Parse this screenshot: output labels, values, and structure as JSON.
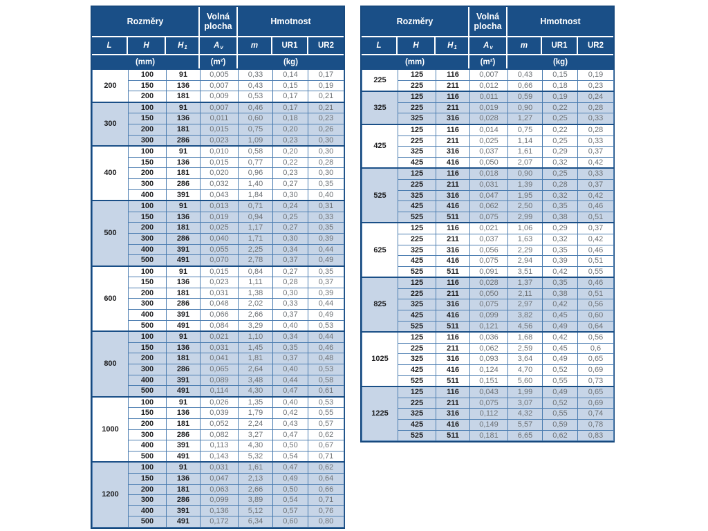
{
  "header": {
    "group_dimensions": "Rozměry",
    "group_free_area": "Volná\nplocha",
    "group_weight": "Hmotnost",
    "columns": {
      "L": "L",
      "H": "H",
      "H1_base": "H",
      "H1_sub": "1",
      "Av_base": "A",
      "Av_sub": "v",
      "m": "m",
      "UR1": "UR1",
      "UR2": "UR2"
    },
    "units": {
      "mm": "(mm)",
      "m2": "(m²)",
      "kg": "(kg)"
    }
  },
  "colors": {
    "header_navy": "#1a4f87",
    "frame_navy": "#17497e",
    "row_alt_blue": "#c7d5e7",
    "grid_blue": "#4a7cb0",
    "value_gray": "#6c7074",
    "dim_dark": "#1d1d1f"
  },
  "tables": [
    {
      "groups": [
        {
          "L": "200",
          "rows": [
            [
              "100",
              "91",
              "0,005",
              "0,33",
              "0,14",
              "0,17"
            ],
            [
              "150",
              "136",
              "0,007",
              "0,43",
              "0,15",
              "0,19"
            ],
            [
              "200",
              "181",
              "0,009",
              "0,53",
              "0,17",
              "0,21"
            ]
          ]
        },
        {
          "L": "300",
          "rows": [
            [
              "100",
              "91",
              "0,007",
              "0,46",
              "0,17",
              "0,21"
            ],
            [
              "150",
              "136",
              "0,011",
              "0,60",
              "0,18",
              "0,23"
            ],
            [
              "200",
              "181",
              "0,015",
              "0,75",
              "0,20",
              "0,26"
            ],
            [
              "300",
              "286",
              "0,023",
              "1,09",
              "0,23",
              "0,30"
            ]
          ]
        },
        {
          "L": "400",
          "rows": [
            [
              "100",
              "91",
              "0,010",
              "0,58",
              "0,20",
              "0,30"
            ],
            [
              "150",
              "136",
              "0,015",
              "0,77",
              "0,22",
              "0,28"
            ],
            [
              "200",
              "181",
              "0,020",
              "0,96",
              "0,23",
              "0,30"
            ],
            [
              "300",
              "286",
              "0,032",
              "1,40",
              "0,27",
              "0,35"
            ],
            [
              "400",
              "391",
              "0,043",
              "1,84",
              "0,30",
              "0,40"
            ]
          ]
        },
        {
          "L": "500",
          "rows": [
            [
              "100",
              "91",
              "0,013",
              "0,71",
              "0,24",
              "0,31"
            ],
            [
              "150",
              "136",
              "0,019",
              "0,94",
              "0,25",
              "0,33"
            ],
            [
              "200",
              "181",
              "0,025",
              "1,17",
              "0,27",
              "0,35"
            ],
            [
              "300",
              "286",
              "0,040",
              "1,71",
              "0,30",
              "0,39"
            ],
            [
              "400",
              "391",
              "0,055",
              "2,25",
              "0,34",
              "0,44"
            ],
            [
              "500",
              "491",
              "0,070",
              "2,78",
              "0,37",
              "0,49"
            ]
          ]
        },
        {
          "L": "600",
          "rows": [
            [
              "100",
              "91",
              "0,015",
              "0,84",
              "0,27",
              "0,35"
            ],
            [
              "150",
              "136",
              "0,023",
              "1,11",
              "0,28",
              "0,37"
            ],
            [
              "200",
              "181",
              "0,031",
              "1,38",
              "0,30",
              "0,39"
            ],
            [
              "300",
              "286",
              "0,048",
              "2,02",
              "0,33",
              "0,44"
            ],
            [
              "400",
              "391",
              "0,066",
              "2,66",
              "0,37",
              "0,49"
            ],
            [
              "500",
              "491",
              "0,084",
              "3,29",
              "0,40",
              "0,53"
            ]
          ]
        },
        {
          "L": "800",
          "rows": [
            [
              "100",
              "91",
              "0,021",
              "1,10",
              "0,34",
              "0,44"
            ],
            [
              "150",
              "136",
              "0,031",
              "1,45",
              "0,35",
              "0,46"
            ],
            [
              "200",
              "181",
              "0,041",
              "1,81",
              "0,37",
              "0,48"
            ],
            [
              "300",
              "286",
              "0,065",
              "2,64",
              "0,40",
              "0,53"
            ],
            [
              "400",
              "391",
              "0,089",
              "3,48",
              "0,44",
              "0,58"
            ],
            [
              "500",
              "491",
              "0,114",
              "4,30",
              "0,47",
              "0,61"
            ]
          ]
        },
        {
          "L": "1000",
          "rows": [
            [
              "100",
              "91",
              "0,026",
              "1,35",
              "0,40",
              "0,53"
            ],
            [
              "150",
              "136",
              "0,039",
              "1,79",
              "0,42",
              "0,55"
            ],
            [
              "200",
              "181",
              "0,052",
              "2,24",
              "0,43",
              "0,57"
            ],
            [
              "300",
              "286",
              "0,082",
              "3,27",
              "0,47",
              "0,62"
            ],
            [
              "400",
              "391",
              "0,113",
              "4,30",
              "0,50",
              "0,67"
            ],
            [
              "500",
              "491",
              "0,143",
              "5,32",
              "0,54",
              "0,71"
            ]
          ]
        },
        {
          "L": "1200",
          "rows": [
            [
              "100",
              "91",
              "0,031",
              "1,61",
              "0,47",
              "0,62"
            ],
            [
              "150",
              "136",
              "0,047",
              "2,13",
              "0,49",
              "0,64"
            ],
            [
              "200",
              "181",
              "0,063",
              "2,66",
              "0,50",
              "0,66"
            ],
            [
              "300",
              "286",
              "0,099",
              "3,89",
              "0,54",
              "0,71"
            ],
            [
              "400",
              "391",
              "0,136",
              "5,12",
              "0,57",
              "0,76"
            ],
            [
              "500",
              "491",
              "0,172",
              "6,34",
              "0,60",
              "0,80"
            ]
          ]
        }
      ]
    },
    {
      "groups": [
        {
          "L": "225",
          "rows": [
            [
              "125",
              "116",
              "0,007",
              "0,43",
              "0,15",
              "0,19"
            ],
            [
              "225",
              "211",
              "0,012",
              "0,66",
              "0,18",
              "0,23"
            ]
          ]
        },
        {
          "L": "325",
          "rows": [
            [
              "125",
              "116",
              "0,011",
              "0,59",
              "0,19",
              "0,24"
            ],
            [
              "225",
              "211",
              "0,019",
              "0,90",
              "0,22",
              "0,28"
            ],
            [
              "325",
              "316",
              "0,028",
              "1,27",
              "0,25",
              "0,33"
            ]
          ]
        },
        {
          "L": "425",
          "rows": [
            [
              "125",
              "116",
              "0,014",
              "0,75",
              "0,22",
              "0,28"
            ],
            [
              "225",
              "211",
              "0,025",
              "1,14",
              "0,25",
              "0,33"
            ],
            [
              "325",
              "316",
              "0,037",
              "1,61",
              "0,29",
              "0,37"
            ],
            [
              "425",
              "416",
              "0,050",
              "2,07",
              "0,32",
              "0,42"
            ]
          ]
        },
        {
          "L": "525",
          "rows": [
            [
              "125",
              "116",
              "0,018",
              "0,90",
              "0,25",
              "0,33"
            ],
            [
              "225",
              "211",
              "0,031",
              "1,39",
              "0,28",
              "0,37"
            ],
            [
              "325",
              "316",
              "0,047",
              "1,95",
              "0,32",
              "0,42"
            ],
            [
              "425",
              "416",
              "0,062",
              "2,50",
              "0,35",
              "0,46"
            ],
            [
              "525",
              "511",
              "0,075",
              "2,99",
              "0,38",
              "0,51"
            ]
          ]
        },
        {
          "L": "625",
          "rows": [
            [
              "125",
              "116",
              "0,021",
              "1,06",
              "0,29",
              "0,37"
            ],
            [
              "225",
              "211",
              "0,037",
              "1,63",
              "0,32",
              "0,42"
            ],
            [
              "325",
              "316",
              "0,056",
              "2,29",
              "0,35",
              "0,46"
            ],
            [
              "425",
              "416",
              "0,075",
              "2,94",
              "0,39",
              "0,51"
            ],
            [
              "525",
              "511",
              "0,091",
              "3,51",
              "0,42",
              "0,55"
            ]
          ]
        },
        {
          "L": "825",
          "rows": [
            [
              "125",
              "116",
              "0,028",
              "1,37",
              "0,35",
              "0,46"
            ],
            [
              "225",
              "211",
              "0,050",
              "2,11",
              "0,38",
              "0,51"
            ],
            [
              "325",
              "316",
              "0,075",
              "2,97",
              "0,42",
              "0,56"
            ],
            [
              "425",
              "416",
              "0,099",
              "3,82",
              "0,45",
              "0,60"
            ],
            [
              "525",
              "511",
              "0,121",
              "4,56",
              "0,49",
              "0,64"
            ]
          ]
        },
        {
          "L": "1025",
          "rows": [
            [
              "125",
              "116",
              "0,036",
              "1,68",
              "0,42",
              "0,56"
            ],
            [
              "225",
              "211",
              "0,062",
              "2,59",
              "0,45",
              "0,6"
            ],
            [
              "325",
              "316",
              "0,093",
              "3,64",
              "0,49",
              "0,65"
            ],
            [
              "425",
              "416",
              "0,124",
              "4,70",
              "0,52",
              "0,69"
            ],
            [
              "525",
              "511",
              "0,151",
              "5,60",
              "0,55",
              "0,73"
            ]
          ]
        },
        {
          "L": "1225",
          "rows": [
            [
              "125",
              "116",
              "0,043",
              "1,99",
              "0,49",
              "0,65"
            ],
            [
              "225",
              "211",
              "0,075",
              "3,07",
              "0,52",
              "0,69"
            ],
            [
              "325",
              "316",
              "0,112",
              "4,32",
              "0,55",
              "0,74"
            ],
            [
              "425",
              "416",
              "0,149",
              "5,57",
              "0,59",
              "0,78"
            ],
            [
              "525",
              "511",
              "0,181",
              "6,65",
              "0,62",
              "0,83"
            ]
          ]
        }
      ]
    }
  ]
}
